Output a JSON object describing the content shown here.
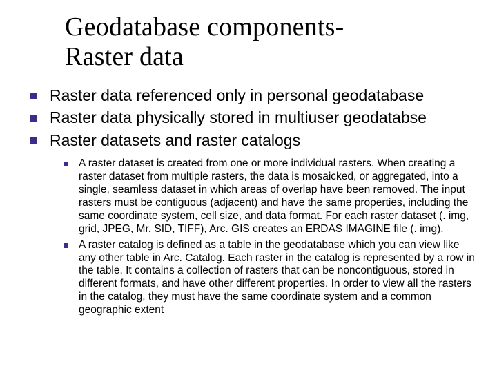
{
  "title_line1": "Geodatabase components-",
  "title_line2": "Raster data",
  "points": {
    "p0": "Raster data referenced only in personal geodatabase",
    "p1": "Raster data physically stored in multiuser geodatabse",
    "p2": "Raster datasets and raster catalogs"
  },
  "sub": {
    "s0": "A raster dataset is created from one or more individual rasters. When creating a raster dataset from multiple rasters, the data is mosaicked, or aggregated, into a single, seamless dataset in which areas of overlap have been removed. The input rasters must be contiguous (adjacent) and have the same properties, including the same coordinate system, cell size, and data format. For each raster dataset (. img, grid, JPEG, Mr. SID, TIFF), Arc. GIS creates an ERDAS IMAGINE file (. img).",
    "s1": "A raster catalog is defined as a table in the geodatabase which you can view like any other table in Arc. Catalog. Each raster in the catalog is represented by a row in the table. It contains a collection of rasters that can be noncontiguous, stored in different formats, and have other different properties. In order to view all the rasters in the catalog, they must have the same coordinate system and a common geographic extent"
  },
  "style": {
    "bullet_color": "#392d8e",
    "title_fontsize_pt": 28,
    "top_fontsize_pt": 17,
    "sub_fontsize_pt": 12,
    "background": "#ffffff",
    "title_font": "Times New Roman",
    "body_font": "Verdana"
  }
}
